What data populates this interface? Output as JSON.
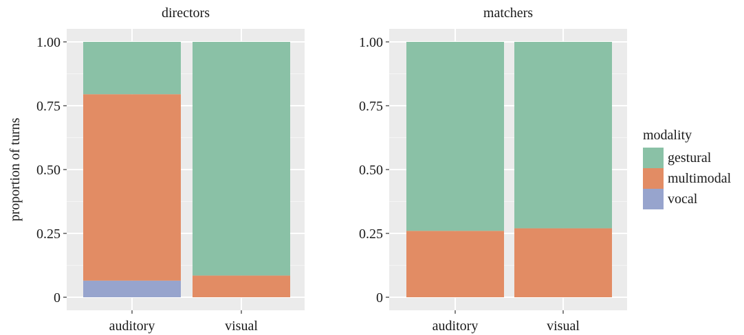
{
  "chart_data": {
    "type": "bar",
    "stacked": true,
    "ylabel": "proportion of turns",
    "ylim": [
      0,
      1
    ],
    "yticks": [
      {
        "value": 0,
        "label": "0"
      },
      {
        "value": 0.25,
        "label": "0.25"
      },
      {
        "value": 0.5,
        "label": "0.50"
      },
      {
        "value": 0.75,
        "label": "0.75"
      },
      {
        "value": 1,
        "label": "1.00"
      }
    ],
    "grid": true,
    "legend": {
      "title": "modality",
      "placement": "right",
      "entries": [
        {
          "name": "gestural",
          "color": "#8AC1A6"
        },
        {
          "name": "multimodal",
          "color": "#E28C64"
        },
        {
          "name": "vocal",
          "color": "#97A4CD"
        }
      ]
    },
    "panels": [
      {
        "title": "directors",
        "categories": [
          "auditory",
          "visual"
        ],
        "series": [
          {
            "name": "vocal",
            "color": "#97A4CD",
            "values": [
              0.065,
              0.0
            ]
          },
          {
            "name": "multimodal",
            "color": "#E28C64",
            "values": [
              0.73,
              0.085
            ]
          },
          {
            "name": "gestural",
            "color": "#8AC1A6",
            "values": [
              0.205,
              0.915
            ]
          }
        ]
      },
      {
        "title": "matchers",
        "categories": [
          "auditory",
          "visual"
        ],
        "series": [
          {
            "name": "vocal",
            "color": "#97A4CD",
            "values": [
              0.0,
              0.0
            ]
          },
          {
            "name": "multimodal",
            "color": "#E28C64",
            "values": [
              0.26,
              0.27
            ]
          },
          {
            "name": "gestural",
            "color": "#8AC1A6",
            "values": [
              0.74,
              0.73
            ]
          }
        ]
      }
    ]
  }
}
